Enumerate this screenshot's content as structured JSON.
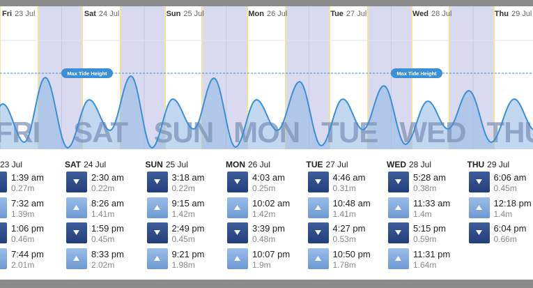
{
  "header_days": [
    {
      "day": "Fri",
      "date": "23 Jul"
    },
    {
      "day": "Sat",
      "date": "24 Jul"
    },
    {
      "day": "Sun",
      "date": "25 Jul"
    },
    {
      "day": "Mon",
      "date": "26 Jul"
    },
    {
      "day": "Tue",
      "date": "27 Jul"
    },
    {
      "day": "Wed",
      "date": "28 Jul"
    },
    {
      "day": "Thu",
      "date": "29 Jul"
    }
  ],
  "max_tide_labels": [
    "Max Tide Height",
    "Max Tide Height"
  ],
  "big_day_labels": [
    "FRI",
    "SAT",
    "SUN",
    "MON",
    "TUE",
    "WED",
    "THU"
  ],
  "tide_table": [
    {
      "date": "23 Jul",
      "entries": [
        {
          "icon": "down",
          "time": "1:39 am",
          "height": "0.27m"
        },
        {
          "icon": "up",
          "time": "7:32 am",
          "height": "1.39m"
        },
        {
          "icon": "down",
          "time": "1:06 pm",
          "height": "0.46m"
        },
        {
          "icon": "up",
          "time": "7:44 pm",
          "height": "2.01m"
        }
      ]
    },
    {
      "day": "SAT",
      "date": "24 Jul",
      "entries": [
        {
          "icon": "down",
          "time": "2:30 am",
          "height": "0.22m"
        },
        {
          "icon": "up",
          "time": "8:26 am",
          "height": "1.41m"
        },
        {
          "icon": "down",
          "time": "1:59 pm",
          "height": "0.45m"
        },
        {
          "icon": "up",
          "time": "8:33 pm",
          "height": "2.02m"
        }
      ]
    },
    {
      "day": "SUN",
      "date": "25 Jul",
      "entries": [
        {
          "icon": "down",
          "time": "3:18 am",
          "height": "0.22m"
        },
        {
          "icon": "up",
          "time": "9:15 am",
          "height": "1.42m"
        },
        {
          "icon": "down",
          "time": "2:49 pm",
          "height": "0.45m"
        },
        {
          "icon": "up",
          "time": "9:21 pm",
          "height": "1.98m"
        }
      ]
    },
    {
      "day": "MON",
      "date": "26 Jul",
      "entries": [
        {
          "icon": "down",
          "time": "4:03 am",
          "height": "0.25m"
        },
        {
          "icon": "up",
          "time": "10:02 am",
          "height": "1.42m"
        },
        {
          "icon": "down",
          "time": "3:39 pm",
          "height": "0.48m"
        },
        {
          "icon": "up",
          "time": "10:07 pm",
          "height": "1.9m"
        }
      ]
    },
    {
      "day": "TUE",
      "date": "27 Jul",
      "entries": [
        {
          "icon": "down",
          "time": "4:46 am",
          "height": "0.31m"
        },
        {
          "icon": "up",
          "time": "10:48 am",
          "height": "1.41m"
        },
        {
          "icon": "down",
          "time": "4:27 pm",
          "height": "0.53m"
        },
        {
          "icon": "up",
          "time": "10:50 pm",
          "height": "1.78m"
        }
      ]
    },
    {
      "day": "WED",
      "date": "28 Jul",
      "entries": [
        {
          "icon": "down",
          "time": "5:28 am",
          "height": "0.38m"
        },
        {
          "icon": "up",
          "time": "11:33 am",
          "height": "1.4m"
        },
        {
          "icon": "down",
          "time": "5:15 pm",
          "height": "0.59m"
        },
        {
          "icon": "up",
          "time": "11:31 pm",
          "height": "1.64m"
        }
      ]
    },
    {
      "day": "THU",
      "date": "29 Jul",
      "entries": [
        {
          "icon": "down",
          "time": "6:06 am",
          "height": "0.45m"
        },
        {
          "icon": "up",
          "time": "12:18 pm",
          "height": "1.4m"
        },
        {
          "icon": "down",
          "time": "6:04 pm",
          "height": "0.66m"
        }
      ]
    }
  ]
}
